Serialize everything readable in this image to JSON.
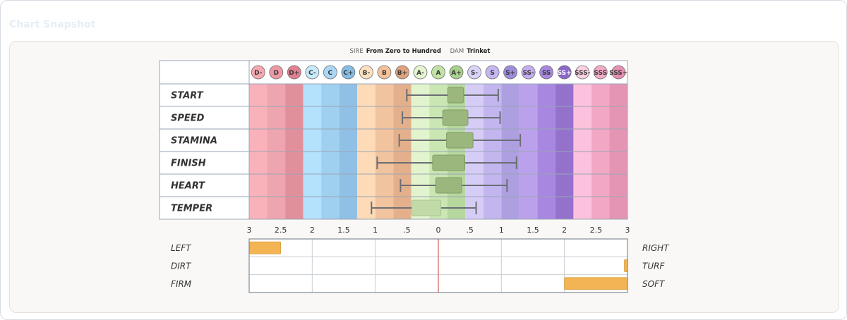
{
  "snapshot_title": "Chart Snapshot",
  "lineage": {
    "sire_label": "SIRE",
    "sire": "From Zero to Hundred",
    "dam_label": "DAM",
    "dam": "Trinket"
  },
  "grades": [
    {
      "label": "D-",
      "color": "#f9b2ba",
      "badge": "#f5a8b2",
      "light": false
    },
    {
      "label": "D",
      "color": "#efa5b0",
      "badge": "#ee98a5",
      "light": false
    },
    {
      "label": "D+",
      "color": "#e28f9c",
      "badge": "#e3808f",
      "light": false
    },
    {
      "label": "C-",
      "color": "#b4e1fb",
      "badge": "#c6ebfc",
      "light": false
    },
    {
      "label": "C",
      "color": "#a0d0f0",
      "badge": "#a9d7f4",
      "light": false
    },
    {
      "label": "C+",
      "color": "#90c0e5",
      "badge": "#84bde6",
      "light": false
    },
    {
      "label": "B-",
      "color": "#fddbb8",
      "badge": "#fde0c0",
      "light": false
    },
    {
      "label": "B",
      "color": "#f1c39f",
      "badge": "#f3c29a",
      "light": false
    },
    {
      "label": "B+",
      "color": "#e4b08c",
      "badge": "#dea27f",
      "light": false
    },
    {
      "label": "A-",
      "color": "#e2f4cd",
      "badge": "#e5f5d0",
      "light": false
    },
    {
      "label": "A",
      "color": "#cae6b2",
      "badge": "#c2e2a5",
      "light": false
    },
    {
      "label": "A+",
      "color": "#b6d79e",
      "badge": "#a8d08c",
      "light": false
    },
    {
      "label": "S-",
      "color": "#d6cdf7",
      "badge": "#dcd4f8",
      "light": false
    },
    {
      "label": "S",
      "color": "#c3b6ee",
      "badge": "#c5b7ef",
      "light": false
    },
    {
      "label": "S+",
      "color": "#ae9fe1",
      "badge": "#9d8bdb",
      "light": false
    },
    {
      "label": "SS-",
      "color": "#bba1eb",
      "badge": "#c5aef0",
      "light": false
    },
    {
      "label": "SS",
      "color": "#a787e0",
      "badge": "#a688e0",
      "light": false
    },
    {
      "label": "SS+",
      "color": "#9472cc",
      "badge": "#8a67c8",
      "light": true
    },
    {
      "label": "SSS-",
      "color": "#fcc1dc",
      "badge": "#fcd0e3",
      "light": false
    },
    {
      "label": "SSS",
      "color": "#f2a8c5",
      "badge": "#f3aac8",
      "light": false
    },
    {
      "label": "SSS+",
      "color": "#e595b4",
      "badge": "#e590b2",
      "light": false
    }
  ],
  "chart_data": {
    "type": "boxplot",
    "x_ticks": [
      "3",
      "2.5",
      "2",
      "1.5",
      "1",
      ".5",
      "0",
      ".5",
      "1",
      "1.5",
      "2",
      "2.5",
      "3"
    ],
    "xlim": [
      -3,
      3
    ],
    "categories": [
      "START",
      "SPEED",
      "STAMINA",
      "FINISH",
      "HEART",
      "TEMPER"
    ],
    "rows": [
      {
        "trait": "START",
        "whisker_low": -0.5,
        "box_low": 0.15,
        "box_high": 0.4,
        "whisker_high": 0.95,
        "muted": false
      },
      {
        "trait": "SPEED",
        "whisker_low": -0.57,
        "box_low": 0.07,
        "box_high": 0.47,
        "whisker_high": 0.98,
        "muted": false
      },
      {
        "trait": "STAMINA",
        "whisker_low": -0.62,
        "box_low": 0.13,
        "box_high": 0.55,
        "whisker_high": 1.3,
        "muted": false
      },
      {
        "trait": "FINISH",
        "whisker_low": -0.97,
        "box_low": -0.09,
        "box_high": 0.42,
        "whisker_high": 1.24,
        "muted": false
      },
      {
        "trait": "HEART",
        "whisker_low": -0.6,
        "box_low": -0.04,
        "box_high": 0.37,
        "whisker_high": 1.09,
        "muted": false
      },
      {
        "trait": "TEMPER",
        "whisker_low": -1.06,
        "box_low": -0.42,
        "box_high": 0.04,
        "whisker_high": 0.6,
        "muted": true
      }
    ],
    "preferences": [
      {
        "left": "LEFT",
        "right": "RIGHT",
        "from": -3.0,
        "to": -2.5
      },
      {
        "left": "DIRT",
        "right": "TURF",
        "from": 2.95,
        "to": 3.0
      },
      {
        "left": "FIRM",
        "right": "SOFT",
        "from": 2.0,
        "to": 3.0
      }
    ],
    "colors": {
      "box": "#9cb77e",
      "box_edge": "#7e9e62",
      "box_muted": "#c2d9a8",
      "whisker": "#6b6f74",
      "pref_bar": "#f3b553",
      "pref_bar_edge": "#d79b39",
      "zero_line": "#e07b7b"
    }
  }
}
